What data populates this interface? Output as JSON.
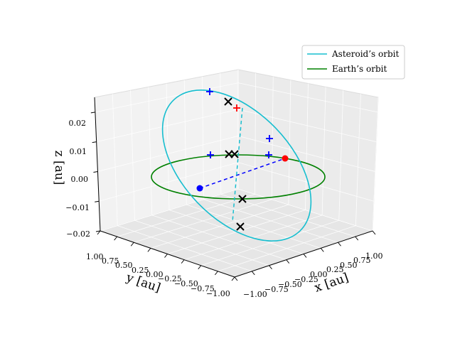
{
  "chart_data": {
    "type": "line",
    "projection": "3d",
    "grid": true,
    "legend_position": "top-right",
    "xlabel": "x [au]",
    "ylabel": "y [au]",
    "zlabel": "z [au]",
    "xlim": [
      -1.0,
      1.0
    ],
    "ylim": [
      -1.0,
      1.0
    ],
    "zlim": [
      -0.02,
      0.025
    ],
    "x_ticks": [
      "−1.00",
      "−0.75",
      "−0.50",
      "−0.25",
      "0.00",
      "0.25",
      "0.50",
      "0.75",
      "1.00"
    ],
    "y_ticks": [
      "1.00",
      "0.75",
      "0.50",
      "0.25",
      "0.00",
      "−0.25",
      "−0.50",
      "−0.75",
      "−1.00"
    ],
    "z_ticks": [
      "−0.02",
      "−0.01",
      "0.00",
      "0.01",
      "0.02"
    ],
    "series": [
      {
        "name": "Asteroid’s orbit",
        "color": "#17becf",
        "style": "solid"
      },
      {
        "name": "Earth’s orbit",
        "color": "#008000",
        "style": "solid"
      }
    ],
    "markers": {
      "earth_dot_color": "#ff0000",
      "asteroid_dot_color": "#0000ff",
      "plus_color": "#0000ff",
      "cross_color": "#000000"
    }
  }
}
